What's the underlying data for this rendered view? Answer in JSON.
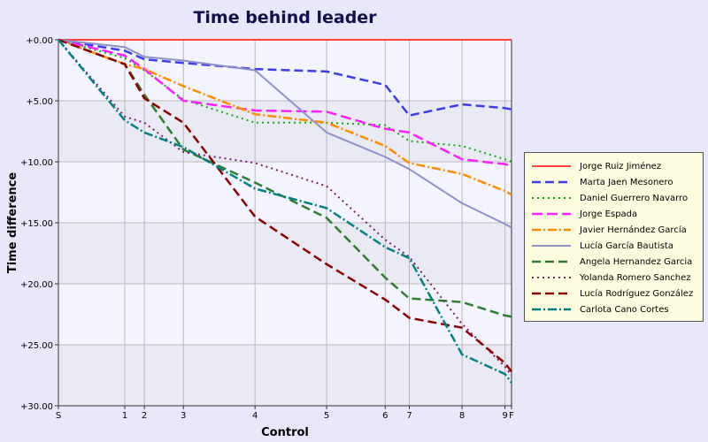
{
  "chart_data": {
    "type": "line",
    "title": "Time behind leader",
    "xlabel": "Control",
    "ylabel": "Time difference",
    "x_ticks": [
      "S",
      "1",
      "2",
      "3",
      "4",
      "5",
      "6",
      "7",
      "8",
      "9",
      "F"
    ],
    "x_positions": [
      0,
      10.2,
      13.2,
      19.2,
      30.2,
      41.2,
      50.2,
      53.9,
      62.0,
      68.6,
      69.6
    ],
    "y_ticks": [
      "+0.00",
      "+5.00",
      "+10.00",
      "+15.00",
      "+20.00",
      "+25.00",
      "+30.00"
    ],
    "ylim": [
      0,
      30
    ],
    "grid": true,
    "legend_position": "right",
    "series": [
      {
        "name": "Jorge Ruiz Jiménez",
        "color": "#ff4040",
        "dash": "",
        "width": 2,
        "values": [
          0,
          0,
          0,
          0,
          0,
          0,
          0,
          0,
          0,
          0,
          0
        ]
      },
      {
        "name": "Marta Jaen Mesonero",
        "color": "#3d3dee",
        "dash": "10,5",
        "width": 2.5,
        "values": [
          0,
          0.9,
          1.6,
          1.9,
          2.4,
          2.6,
          3.7,
          6.2,
          5.3,
          5.6,
          5.7
        ]
      },
      {
        "name": "Daniel Guerrero Navarro",
        "color": "#11aa11",
        "dash": "2,4",
        "width": 2,
        "values": [
          0,
          1.5,
          2.5,
          4.9,
          6.8,
          6.8,
          7.0,
          8.3,
          8.7,
          9.8,
          10.0
        ]
      },
      {
        "name": "Jorge Espada",
        "color": "#ff20ff",
        "dash": "12,5",
        "width": 2.5,
        "values": [
          0,
          1.3,
          2.4,
          5.0,
          5.8,
          5.9,
          7.3,
          7.6,
          9.8,
          10.2,
          10.3
        ]
      },
      {
        "name": "Javier Hernández García",
        "color": "#ff8c00",
        "dash": "10,3,2,3",
        "width": 2.5,
        "values": [
          0,
          2.0,
          2.4,
          3.8,
          6.1,
          6.8,
          8.7,
          10.1,
          11.0,
          12.4,
          12.7
        ]
      },
      {
        "name": "Lucía García Bautista",
        "color": "#9090cc",
        "dash": "",
        "width": 2,
        "values": [
          0,
          0.6,
          1.4,
          1.7,
          2.5,
          7.6,
          9.6,
          10.6,
          13.4,
          15.1,
          15.4
        ]
      },
      {
        "name": "Angela Hernandez Garcia",
        "color": "#2e7d32",
        "dash": "10,5",
        "width": 2.5,
        "values": [
          0,
          2.0,
          4.5,
          9.0,
          11.7,
          14.6,
          19.5,
          21.2,
          21.5,
          22.6,
          22.7
        ]
      },
      {
        "name": "Yolanda Romero Sanchez",
        "color": "#7a1f6e",
        "dash": "2,4",
        "width": 2,
        "values": [
          0,
          6.3,
          6.8,
          9.2,
          10.1,
          12.0,
          16.4,
          17.8,
          23.3,
          26.8,
          27.5
        ]
      },
      {
        "name": "Lucía Rodríguez González",
        "color": "#8b0000",
        "dash": "10,5",
        "width": 2.5,
        "values": [
          0,
          2.0,
          4.8,
          6.8,
          14.5,
          18.4,
          21.3,
          22.8,
          23.6,
          26.5,
          27.2
        ]
      },
      {
        "name": "Carlota Cano Cortes",
        "color": "#008080",
        "dash": "10,3,2,3",
        "width": 2.5,
        "values": [
          0,
          6.6,
          7.6,
          8.8,
          12.2,
          13.8,
          17.0,
          17.9,
          25.8,
          27.4,
          28.1
        ]
      }
    ]
  }
}
